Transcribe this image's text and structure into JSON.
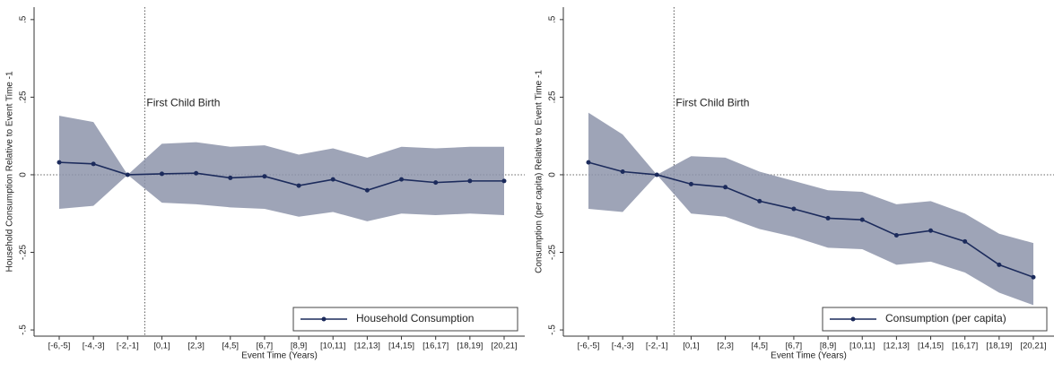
{
  "chart_data": [
    {
      "type": "line",
      "y_label": "Household Consumption Relative to Event Time -1",
      "x_label": "Event Time (Years)",
      "annotation": "First Child Birth",
      "categories": [
        "[-6,-5]",
        "[-4,-3]",
        "[-2,-1]",
        "[0,1]",
        "[2,3]",
        "[4,5]",
        "[6,7]",
        "[8,9]",
        "[10,11]",
        "[12,13]",
        "[14,15]",
        "[16,17]",
        "[18,19]",
        "[20,21]"
      ],
      "series": [
        {
          "name": "Household Consumption",
          "color": "#1c2b5c",
          "band_color": "#8d94aa",
          "values": [
            0.04,
            0.035,
            0,
            0.003,
            0.005,
            -0.01,
            -0.005,
            -0.035,
            -0.015,
            -0.05,
            -0.015,
            -0.025,
            -0.02,
            -0.02
          ],
          "ci_upper": [
            0.19,
            0.17,
            0,
            0.1,
            0.105,
            0.09,
            0.095,
            0.065,
            0.085,
            0.055,
            0.09,
            0.085,
            0.09,
            0.09
          ],
          "ci_lower": [
            -0.11,
            -0.1,
            0,
            -0.09,
            -0.095,
            -0.105,
            -0.11,
            -0.135,
            -0.12,
            -0.15,
            -0.125,
            -0.13,
            -0.125,
            -0.13
          ]
        }
      ],
      "ylim": [
        -0.52,
        0.54
      ],
      "yticks": [
        {
          "value": -0.5,
          "label": "-.5"
        },
        {
          "value": -0.25,
          "label": "-.25"
        },
        0,
        {
          "value": 0.25,
          "label": ".25"
        },
        {
          "value": 0.5,
          "label": ".5"
        }
      ],
      "legend": "bottom-right"
    },
    {
      "type": "line",
      "y_label": "Consumption (per capita) Relative to Event Time -1",
      "x_label": "Event Time (Years)",
      "annotation": "First Child Birth",
      "categories": [
        "[-6,-5]",
        "[-4,-3]",
        "[-2,-1]",
        "[0,1]",
        "[2,3]",
        "[4,5]",
        "[6,7]",
        "[8,9]",
        "[10,11]",
        "[12,13]",
        "[14,15]",
        "[16,17]",
        "[18,19]",
        "[20,21]"
      ],
      "series": [
        {
          "name": "Consumption (per capita)",
          "color": "#1c2b5c",
          "band_color": "#8d94aa",
          "values": [
            0.04,
            0.01,
            0,
            -0.03,
            -0.04,
            -0.085,
            -0.11,
            -0.14,
            -0.145,
            -0.195,
            -0.18,
            -0.215,
            -0.29,
            -0.33
          ],
          "ci_upper": [
            0.2,
            0.13,
            0,
            0.06,
            0.055,
            0.01,
            -0.02,
            -0.05,
            -0.055,
            -0.095,
            -0.085,
            -0.125,
            -0.19,
            -0.22
          ],
          "ci_lower": [
            -0.11,
            -0.12,
            0,
            -0.125,
            -0.135,
            -0.175,
            -0.2,
            -0.235,
            -0.24,
            -0.29,
            -0.28,
            -0.315,
            -0.38,
            -0.42
          ]
        }
      ],
      "ylim": [
        -0.52,
        0.54
      ],
      "yticks": [
        {
          "value": -0.5,
          "label": "-.5"
        },
        {
          "value": -0.25,
          "label": "-.25"
        },
        0,
        {
          "value": 0.25,
          "label": ".25"
        },
        {
          "value": 0.5,
          "label": ".5"
        }
      ],
      "legend": "bottom-right"
    }
  ]
}
